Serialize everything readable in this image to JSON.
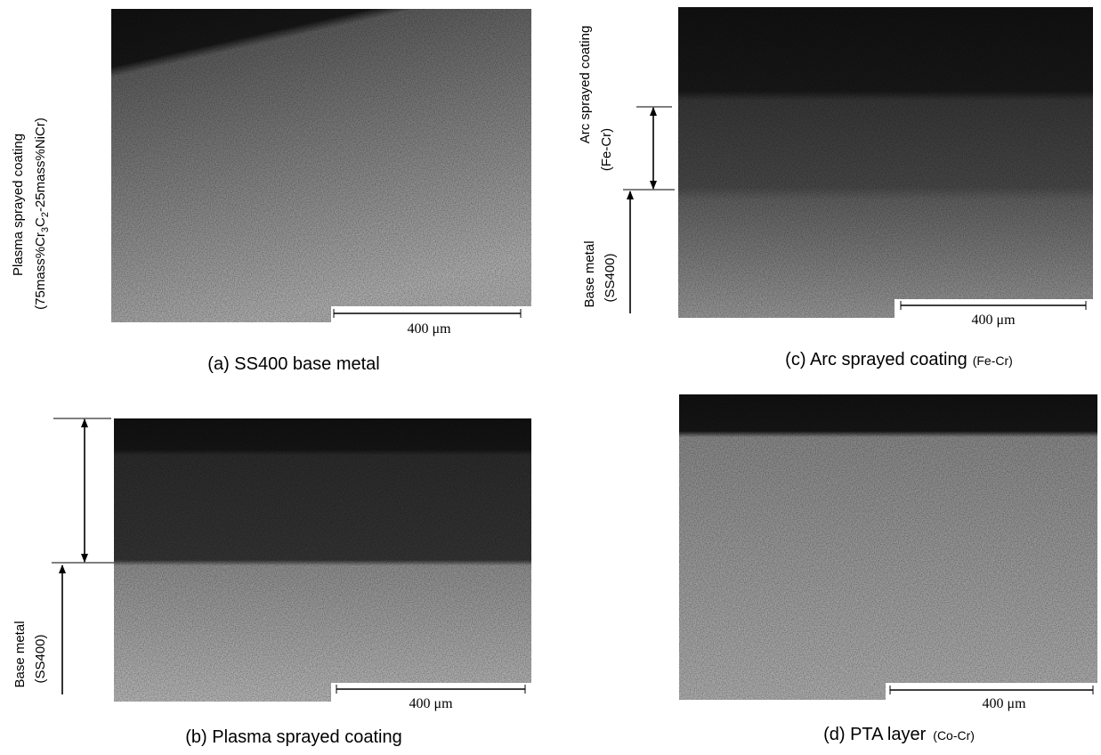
{
  "panels": [
    {
      "caption": "(a)  SS400 base metal",
      "scale": "400 μm"
    },
    {
      "caption": "(b)  Plasma sprayed coating",
      "scale": "400 μm",
      "annotations": {
        "coating": "Plasma sprayed coating",
        "formula": [
          "(75mass%Cr",
          "3",
          "C",
          "2",
          "-25mass%NiCr)"
        ],
        "base": "Base metal",
        "base_sub": "(SS400)"
      }
    },
    {
      "caption": "(c)  Arc sprayed coating",
      "caption_sub": "(Fe-Cr)",
      "scale": "400 μm",
      "annotations": {
        "coating": "Arc sprayed coating",
        "coating_sub": "(Fe-Cr)",
        "base": "Base metal",
        "base_sub": "(SS400)"
      }
    },
    {
      "caption": "(d)  PTA layer",
      "caption_sub": "(Co-Cr)",
      "scale": "400 μm"
    }
  ]
}
